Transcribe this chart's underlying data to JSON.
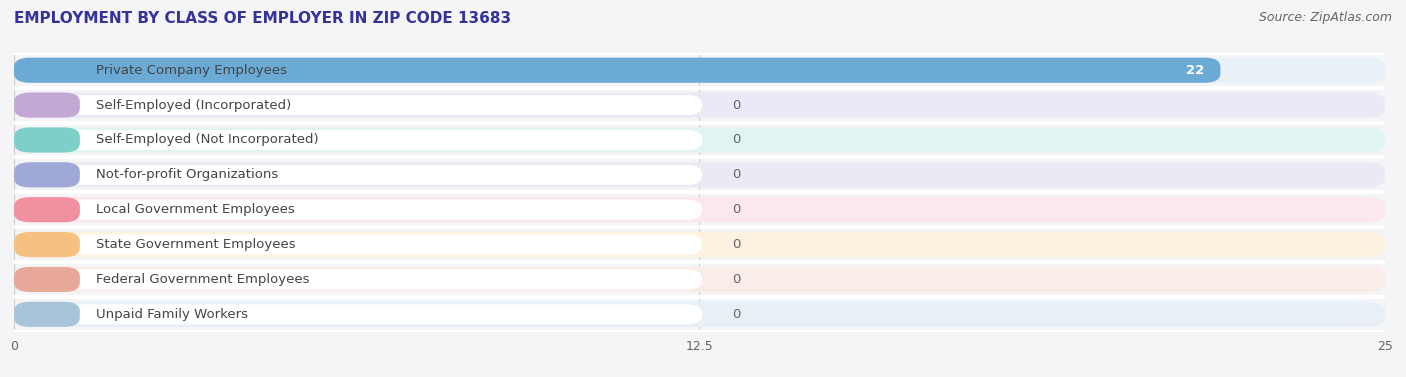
{
  "title": "EMPLOYMENT BY CLASS OF EMPLOYER IN ZIP CODE 13683",
  "source": "Source: ZipAtlas.com",
  "categories": [
    "Private Company Employees",
    "Self-Employed (Incorporated)",
    "Self-Employed (Not Incorporated)",
    "Not-for-profit Organizations",
    "Local Government Employees",
    "State Government Employees",
    "Federal Government Employees",
    "Unpaid Family Workers"
  ],
  "values": [
    22,
    0,
    0,
    0,
    0,
    0,
    0,
    0
  ],
  "bar_colors": [
    "#6aaad4",
    "#c4a8d4",
    "#7ecfca",
    "#a0a8d8",
    "#f090a0",
    "#f5c080",
    "#e8a898",
    "#a8c4d8"
  ],
  "bar_bg_colors": [
    "#e8f0f8",
    "#ede8f5",
    "#e0f4f3",
    "#eaeaf5",
    "#fce8ec",
    "#fdf2e0",
    "#faece8",
    "#e8eff5"
  ],
  "row_bg_color": "#f0f0f5",
  "white_bg": "#ffffff",
  "xlim": [
    0,
    25
  ],
  "xticks": [
    0,
    12.5,
    25
  ],
  "background_color": "#f5f5f8",
  "bar_height": 0.72,
  "value_label_color_inside": "#ffffff",
  "value_label_color_outside": "#666666",
  "title_fontsize": 11,
  "source_fontsize": 9,
  "label_fontsize": 9.5,
  "tick_fontsize": 9
}
